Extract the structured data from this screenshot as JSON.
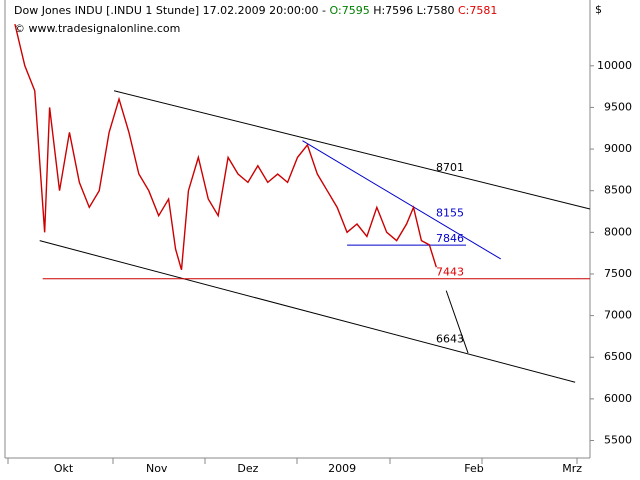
{
  "chart_data": {
    "type": "line",
    "title_parts": [
      {
        "text": "Dow Jones INDU [.INDU  1 Stunde] 17.02.2009 20:00:00 - ",
        "color": "#000000"
      },
      {
        "text": "O:7595",
        "color": "#008000"
      },
      {
        "text": " H:7596 L:7580 ",
        "color": "#000000"
      },
      {
        "text": "C:7581",
        "color": "#e00000"
      }
    ],
    "subtitle": "© www.tradesignalonline.com",
    "y_label": "$",
    "xlim": [
      0,
      590
    ],
    "ylim": [
      5290,
      10790
    ],
    "yticks": [
      5500,
      6000,
      6500,
      7000,
      7500,
      8000,
      8500,
      9000,
      9500,
      10000
    ],
    "xticks": [
      {
        "value": 59,
        "label": "Okt"
      },
      {
        "value": 153,
        "label": "Nov"
      },
      {
        "value": 245,
        "label": "Dez"
      },
      {
        "value": 340,
        "label": "2009"
      },
      {
        "value": 473,
        "label": "Feb"
      },
      {
        "value": 572,
        "label": "Mrz"
      }
    ],
    "series": [
      {
        "name": "Dow Jones INDU",
        "color": "#cc0000",
        "x": [
          10,
          20,
          30,
          40,
          45,
          55,
          65,
          75,
          85,
          95,
          105,
          115,
          125,
          135,
          145,
          155,
          165,
          172,
          178,
          185,
          195,
          205,
          215,
          225,
          235,
          245,
          255,
          265,
          275,
          285,
          295,
          305,
          315,
          325,
          335,
          345,
          355,
          365,
          375,
          385,
          395,
          405,
          412,
          420,
          428,
          435
        ],
        "values": [
          10500,
          10000,
          9700,
          8000,
          9500,
          8500,
          9200,
          8600,
          8300,
          8500,
          9200,
          9600,
          9200,
          8700,
          8500,
          8200,
          8400,
          7800,
          7550,
          8500,
          8900,
          8400,
          8200,
          8900,
          8700,
          8600,
          8800,
          8600,
          8700,
          8600,
          8900,
          9050,
          8700,
          8500,
          8300,
          8000,
          8100,
          7950,
          8300,
          8000,
          7900,
          8100,
          8300,
          7900,
          7850,
          7581
        ]
      }
    ],
    "trendlines": [
      {
        "color": "#000000",
        "x": [
          110,
          590
        ],
        "values": [
          9700,
          8280
        ]
      },
      {
        "color": "#000000",
        "x": [
          35,
          575
        ],
        "values": [
          7900,
          6200
        ]
      },
      {
        "color": "#0000cc",
        "x": [
          300,
          500
        ],
        "values": [
          9100,
          7680
        ]
      },
      {
        "color": "#0000cc",
        "x": [
          345,
          465
        ],
        "values": [
          7846,
          7846
        ]
      },
      {
        "color": "#cc0000",
        "x": [
          38,
          590
        ],
        "values": [
          7443,
          7443
        ]
      },
      {
        "color": "#000000",
        "x": [
          445,
          467
        ],
        "values": [
          7300,
          6550
        ]
      }
    ],
    "levels": [
      {
        "value": 8701,
        "color": "#000000"
      },
      {
        "value": 8155,
        "color": "#0000cc"
      },
      {
        "value": 7846,
        "color": "#0000cc"
      },
      {
        "value": 7443,
        "color": "#e00000"
      },
      {
        "value": 6643,
        "color": "#000000"
      }
    ]
  }
}
